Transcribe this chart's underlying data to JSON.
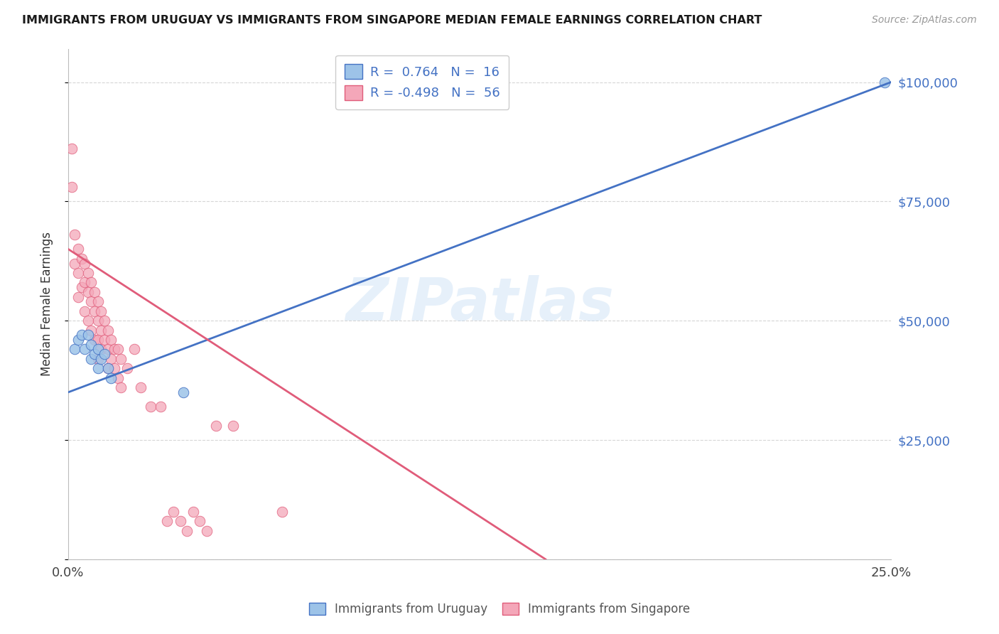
{
  "title": "IMMIGRANTS FROM URUGUAY VS IMMIGRANTS FROM SINGAPORE MEDIAN FEMALE EARNINGS CORRELATION CHART",
  "source": "Source: ZipAtlas.com",
  "xlabel": "",
  "ylabel": "Median Female Earnings",
  "legend_label_1": "Immigrants from Uruguay",
  "legend_label_2": "Immigrants from Singapore",
  "R1": 0.764,
  "N1": 16,
  "R2": -0.498,
  "N2": 56,
  "xlim": [
    0.0,
    0.25
  ],
  "ylim": [
    0,
    107000
  ],
  "color_uruguay": "#9dc3e8",
  "color_singapore": "#f4a7b9",
  "line_color_uruguay": "#4472c4",
  "line_color_singapore": "#e05c7a",
  "yticks": [
    0,
    25000,
    50000,
    75000,
    100000
  ],
  "ytick_labels": [
    "",
    "$25,000",
    "$50,000",
    "$75,000",
    "$100,000"
  ],
  "xticks": [
    0.0,
    0.05,
    0.1,
    0.15,
    0.2,
    0.25
  ],
  "xtick_labels": [
    "0.0%",
    "",
    "",
    "",
    "",
    "25.0%"
  ],
  "watermark": "ZIPatlas",
  "blue_line_x0": 0.0,
  "blue_line_y0": 35000,
  "blue_line_x1": 0.25,
  "blue_line_y1": 100000,
  "pink_line_x0": 0.0,
  "pink_line_y0": 65000,
  "pink_line_x1": 0.145,
  "pink_line_y1": 0,
  "uruguay_x": [
    0.002,
    0.003,
    0.004,
    0.005,
    0.006,
    0.007,
    0.007,
    0.008,
    0.009,
    0.009,
    0.01,
    0.011,
    0.012,
    0.013,
    0.035,
    0.248
  ],
  "uruguay_y": [
    44000,
    46000,
    47000,
    44000,
    47000,
    45000,
    42000,
    43000,
    44000,
    40000,
    42000,
    43000,
    40000,
    38000,
    35000,
    100000
  ],
  "singapore_x": [
    0.001,
    0.001,
    0.002,
    0.002,
    0.003,
    0.003,
    0.003,
    0.004,
    0.004,
    0.005,
    0.005,
    0.005,
    0.006,
    0.006,
    0.006,
    0.007,
    0.007,
    0.007,
    0.008,
    0.008,
    0.008,
    0.009,
    0.009,
    0.009,
    0.009,
    0.01,
    0.01,
    0.01,
    0.011,
    0.011,
    0.012,
    0.012,
    0.012,
    0.013,
    0.013,
    0.014,
    0.014,
    0.015,
    0.015,
    0.016,
    0.016,
    0.018,
    0.02,
    0.022,
    0.025,
    0.028,
    0.03,
    0.032,
    0.034,
    0.036,
    0.038,
    0.04,
    0.042,
    0.045,
    0.05,
    0.065
  ],
  "singapore_y": [
    86000,
    78000,
    68000,
    62000,
    65000,
    60000,
    55000,
    63000,
    57000,
    62000,
    58000,
    52000,
    60000,
    56000,
    50000,
    58000,
    54000,
    48000,
    56000,
    52000,
    46000,
    54000,
    50000,
    46000,
    42000,
    52000,
    48000,
    44000,
    50000,
    46000,
    48000,
    44000,
    40000,
    46000,
    42000,
    44000,
    40000,
    44000,
    38000,
    42000,
    36000,
    40000,
    44000,
    36000,
    32000,
    32000,
    8000,
    10000,
    8000,
    6000,
    10000,
    8000,
    6000,
    28000,
    28000,
    10000
  ]
}
